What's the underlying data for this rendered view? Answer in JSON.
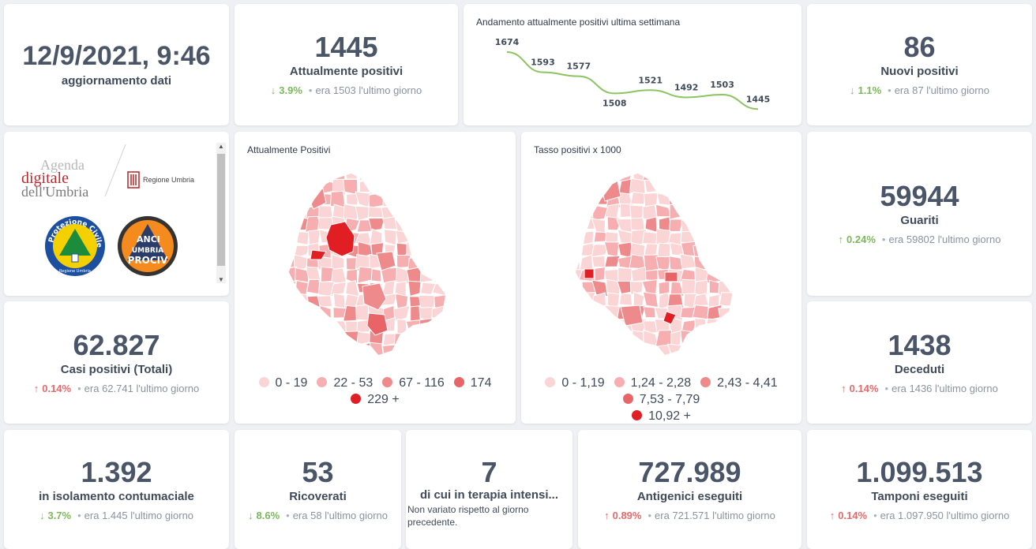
{
  "update": {
    "datetime": "12/9/2021, 9:46",
    "label": "aggiornamento dati"
  },
  "attuali": {
    "value": "1445",
    "label": "Attualmente positivi",
    "pct": "3.9%",
    "prev": "era 1503",
    "period": "l'ultimo giorno"
  },
  "trend": {
    "title": "Andamento attualmente positivi ultima settimana",
    "chart_data": {
      "type": "line",
      "title": "Andamento attualmente positivi ultima settimana",
      "values": [
        1674,
        1593,
        1577,
        1508,
        1521,
        1492,
        1503,
        1445
      ],
      "labels": [
        "1674",
        "1593",
        "1577",
        "1508",
        "1521",
        "1492",
        "1503",
        "1445"
      ],
      "ylim": [
        1430,
        1690
      ],
      "color": "#8cc462"
    }
  },
  "nuovi": {
    "value": "86",
    "label": "Nuovi positivi",
    "pct": "1.1%",
    "prev": "era 87",
    "period": "l'ultimo giorno"
  },
  "logos": {
    "agenda_line1": "Agenda",
    "agenda_line2": "digitale",
    "agenda_line3": "dell'Umbria",
    "regione": "Regione Umbria",
    "protezione_ring": "Protezione Civile",
    "protezione_sub": "Regione Umbria",
    "anci_line1": "ANCI",
    "anci_line2": "UMBRIA",
    "anci_line3": "PROCIV"
  },
  "map1": {
    "title": "Attualmente Positivi",
    "legend": [
      {
        "label": "0 - 19",
        "color": "#fbd5d5"
      },
      {
        "label": "22 - 53",
        "color": "#f6aeb0"
      },
      {
        "label": "67 - 116",
        "color": "#ef8a8c"
      },
      {
        "label": "174",
        "color": "#e96466"
      },
      {
        "label": "229 +",
        "color": "#e01e24"
      }
    ]
  },
  "map2": {
    "title": "Tasso positivi x 1000",
    "legend": [
      {
        "label": "0 - 1,19",
        "color": "#fbd5d5"
      },
      {
        "label": "1,24 - 2,28",
        "color": "#f6aeb0"
      },
      {
        "label": "2,43 - 4,41",
        "color": "#ef8a8c"
      },
      {
        "label": "7,53 - 7,79",
        "color": "#e96466"
      },
      {
        "label": "10,92 +",
        "color": "#e01e24"
      }
    ]
  },
  "guariti": {
    "value": "59944",
    "label": "Guariti",
    "pct": "0.24%",
    "prev": "era 59802",
    "period": "l'ultimo giorno"
  },
  "casi": {
    "value": "62.827",
    "label": "Casi positivi (Totali)",
    "pct": "0.14%",
    "prev": "era 62.741",
    "period": "l'ultimo giorno"
  },
  "deceduti": {
    "value": "1438",
    "label": "Deceduti",
    "pct": "0.14%",
    "prev": "era 1436",
    "period": "l'ultimo giorno"
  },
  "isolamento": {
    "value": "1.392",
    "label": "in isolamento contumaciale",
    "pct": "3.7%",
    "prev": "era 1.445",
    "period": "l'ultimo giorno"
  },
  "ricoverati": {
    "value": "53",
    "label": "Ricoverati",
    "pct": "8.6%",
    "prev": "era 58",
    "period": "l'ultimo giorno"
  },
  "terapia": {
    "value": "7",
    "label": "di cui in terapia intensi...",
    "note": "Non variato rispetto al giorno precedente."
  },
  "antigenici": {
    "value": "727.989",
    "label": "Antigenici eseguiti",
    "pct": "0.89%",
    "prev": "era 721.571",
    "period": "l'ultimo giorno"
  },
  "tamponi": {
    "value": "1.099.513",
    "label": "Tamponi eseguiti",
    "pct": "0.14%",
    "prev": "era 1.097.950",
    "period": "l'ultimo giorno"
  },
  "colors": {
    "up": "#e56b6b",
    "down": "#7bb85a",
    "text": "#4b5568"
  }
}
